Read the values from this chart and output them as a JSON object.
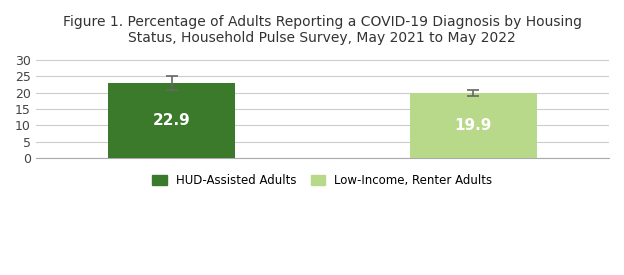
{
  "title": "Figure 1. Percentage of Adults Reporting a COVID-19 Diagnosis by Housing\nStatus, Household Pulse Survey, May 2021 to May 2022",
  "values": [
    22.9,
    19.9
  ],
  "errors": [
    2.2,
    1.0
  ],
  "bar_colors": [
    "#3a7a2a",
    "#b8d98a"
  ],
  "bar_labels": [
    "22.9",
    "19.9"
  ],
  "label_color": "#ffffff",
  "label_fontsize": 11,
  "ylim": [
    0,
    32
  ],
  "yticks": [
    0,
    5,
    10,
    15,
    20,
    25,
    30
  ],
  "title_fontsize": 10,
  "legend_labels": [
    "HUD-Assisted Adults",
    "Low-Income, Renter Adults"
  ],
  "legend_colors": [
    "#3a7a2a",
    "#b8d98a"
  ],
  "background_color": "#ffffff",
  "grid_color": "#cccccc",
  "error_color": "#666666",
  "bar_width": 0.42,
  "bar_positions": [
    1,
    2
  ]
}
